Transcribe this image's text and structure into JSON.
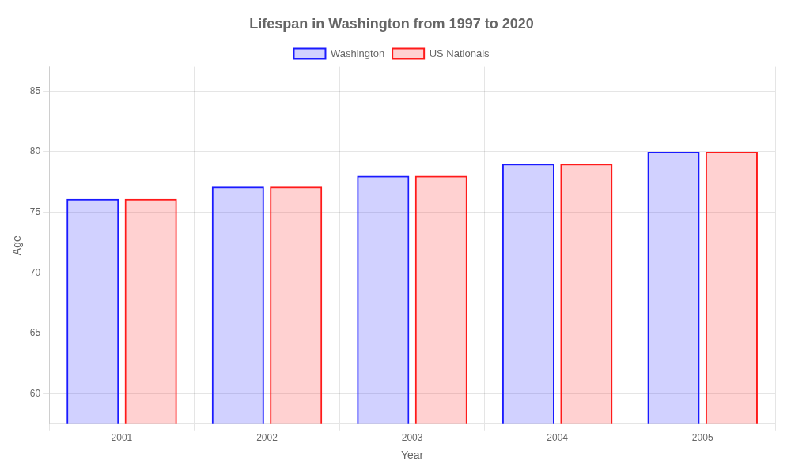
{
  "chart_data": {
    "type": "bar",
    "title": "Lifespan in Washington from 1997 to 2020",
    "x_label": "Year",
    "y_label": "Age",
    "categories": [
      "2001",
      "2002",
      "2003",
      "2004",
      "2005"
    ],
    "series": [
      {
        "name": "Washington",
        "color": "#1a1aff",
        "values": [
          76.1,
          77.1,
          78.0,
          79.0,
          80.0
        ]
      },
      {
        "name": "US Nationals",
        "color": "#ff1a1a",
        "values": [
          76.1,
          77.1,
          78.0,
          79.0,
          80.0
        ]
      }
    ],
    "ylim": [
      57.5,
      87
    ],
    "yticks": [
      60,
      65,
      70,
      75,
      80,
      85
    ],
    "grid": true,
    "legend": "top"
  }
}
